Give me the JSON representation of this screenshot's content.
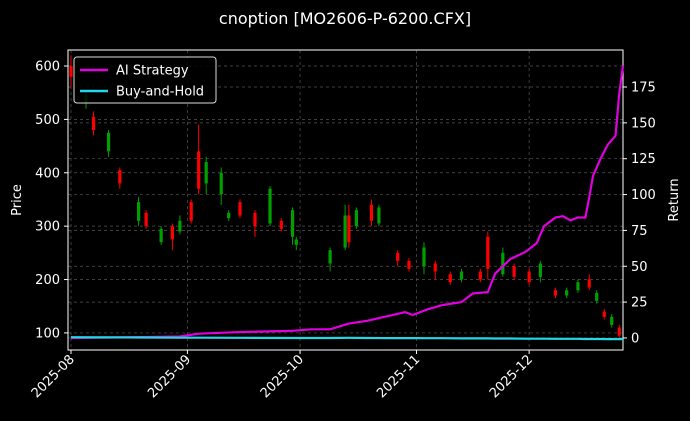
{
  "chart_data": {
    "type": "candlestick",
    "title": "cnoption [MO2606-P-6200.CFX]",
    "ylabel": "Price",
    "y2label": "Return",
    "xlim": [
      0.2,
      148
    ],
    "ylim": [
      68,
      630
    ],
    "y2lim": [
      -8.4,
      200.8
    ],
    "xticks": [
      {
        "value": 1,
        "label": "2025-08"
      },
      {
        "value": 32,
        "label": "2025-09"
      },
      {
        "value": 62,
        "label": "2025-10"
      },
      {
        "value": 93,
        "label": "2025-11"
      },
      {
        "value": 123,
        "label": "2025-12"
      }
    ],
    "yticks": [
      100,
      200,
      300,
      400,
      500,
      600
    ],
    "y2ticks": [
      0,
      25,
      50,
      75,
      100,
      125,
      150,
      175
    ],
    "grid": true,
    "legend": "upper left",
    "up_color": "#ff0000",
    "down_color": "#00a000",
    "candles": {
      "x": [
        1,
        5,
        7,
        11,
        14,
        19,
        21,
        25,
        28,
        30,
        33,
        35,
        37,
        41,
        43,
        46,
        50,
        54,
        57,
        60,
        61,
        70,
        74,
        75,
        77,
        81,
        83,
        88,
        91,
        95,
        98,
        102,
        105,
        110,
        112,
        116,
        119,
        123,
        126,
        130,
        133,
        136,
        139,
        141,
        143,
        145,
        147
      ],
      "open": [
        580,
        545,
        480,
        475,
        380,
        345,
        300,
        295,
        275,
        310,
        310,
        370,
        420,
        400,
        325,
        320,
        300,
        370,
        295,
        330,
        275,
        255,
        320,
        270,
        330,
        310,
        335,
        235,
        220,
        260,
        215,
        195,
        215,
        200,
        220,
        250,
        205,
        195,
        230,
        170,
        180,
        195,
        185,
        175,
        130,
        130,
        95
      ],
      "high": [
        620,
        555,
        515,
        480,
        410,
        355,
        330,
        300,
        305,
        320,
        350,
        490,
        430,
        410,
        330,
        350,
        330,
        375,
        315,
        335,
        280,
        260,
        340,
        340,
        335,
        350,
        340,
        255,
        240,
        270,
        235,
        215,
        220,
        220,
        290,
        260,
        230,
        220,
        235,
        185,
        185,
        200,
        210,
        180,
        145,
        135,
        115
      ],
      "low": [
        560,
        520,
        470,
        430,
        370,
        300,
        295,
        265,
        255,
        285,
        305,
        360,
        360,
        340,
        310,
        315,
        280,
        300,
        290,
        265,
        255,
        215,
        255,
        260,
        295,
        300,
        300,
        225,
        215,
        210,
        200,
        190,
        195,
        195,
        200,
        205,
        200,
        190,
        195,
        165,
        165,
        175,
        180,
        155,
        125,
        110,
        90
      ],
      "close": [
        600,
        530,
        505,
        440,
        405,
        310,
        325,
        270,
        300,
        290,
        345,
        440,
        380,
        360,
        315,
        345,
        325,
        305,
        310,
        280,
        265,
        230,
        260,
        320,
        300,
        340,
        305,
        250,
        235,
        225,
        230,
        210,
        200,
        215,
        280,
        210,
        225,
        215,
        205,
        180,
        170,
        180,
        200,
        160,
        140,
        115,
        110
      ]
    },
    "series": [
      {
        "name": "AI Strategy",
        "color": "#e000e0",
        "axis": "y2",
        "x": [
          1,
          10,
          20,
          30,
          35,
          45,
          60,
          65,
          70,
          75,
          80,
          85,
          90,
          92,
          96,
          100,
          105,
          108,
          112,
          114,
          118,
          122,
          125,
          127,
          130,
          132,
          134,
          136,
          138,
          139,
          140,
          142,
          144,
          146,
          147,
          148
        ],
        "values": [
          0,
          0.3,
          0.6,
          1,
          3,
          4,
          5,
          6,
          6,
          10,
          12,
          15,
          18,
          16,
          20,
          23,
          25,
          31,
          32,
          45,
          55,
          60,
          66,
          78,
          84,
          85,
          82,
          84,
          84,
          98,
          113,
          125,
          135,
          141,
          170,
          190
        ]
      },
      {
        "name": "Buy-and-Hold",
        "color": "#22d8e8",
        "axis": "y2",
        "x": [
          1,
          10,
          20,
          30,
          35,
          45,
          60,
          65,
          70,
          75,
          80,
          85,
          90,
          92,
          96,
          100,
          105,
          108,
          112,
          114,
          118,
          122,
          125,
          127,
          130,
          132,
          134,
          136,
          138,
          139,
          140,
          142,
          144,
          146,
          147,
          148
        ],
        "values": [
          0.5,
          0.4,
          0.3,
          0.2,
          0.2,
          0.1,
          0,
          0,
          0,
          0.1,
          0,
          -0.1,
          -0.1,
          -0.1,
          -0.2,
          -0.2,
          -0.3,
          -0.3,
          -0.3,
          -0.4,
          -0.4,
          -0.5,
          -0.5,
          -0.5,
          -0.6,
          -0.6,
          -0.6,
          -0.6,
          -0.7,
          -0.7,
          -0.7,
          -0.7,
          -0.8,
          -0.8,
          -0.8,
          -0.8
        ]
      }
    ]
  }
}
